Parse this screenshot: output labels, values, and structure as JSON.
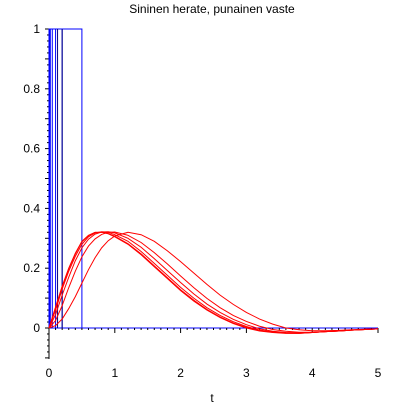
{
  "chart_data": {
    "type": "line",
    "title": "Sininen herate, punainen vaste",
    "xlabel": "t",
    "ylabel": "",
    "xlim": [
      -0.05,
      5
    ],
    "ylim": [
      -0.1,
      1
    ],
    "x_ticks": [
      0,
      1,
      2,
      3,
      4,
      5
    ],
    "x_tick_labels": [
      "0",
      "1",
      "2",
      "3",
      "4",
      "5"
    ],
    "y_ticks": [
      0,
      0.2,
      0.4,
      0.6,
      0.8,
      1
    ],
    "y_tick_labels": [
      "0",
      "0.2",
      "0.4",
      "0.6",
      "0.8",
      "1"
    ],
    "grid": false,
    "colors": {
      "excitation": "#0000ff",
      "response": "#ff0000",
      "axis": "#000000"
    },
    "excitation_pulses": [
      {
        "width": 0.01,
        "height": 1
      },
      {
        "width": 0.02,
        "height": 1
      },
      {
        "width": 0.05,
        "height": 1
      },
      {
        "width": 0.1,
        "height": 1
      },
      {
        "width": 0.2,
        "height": 1
      },
      {
        "width": 0.5,
        "height": 1
      }
    ],
    "series": [
      {
        "x": [
          0,
          0.1,
          0.2,
          0.3,
          0.4,
          0.5,
          0.6,
          0.7,
          0.8,
          0.9,
          1.0,
          1.2,
          1.4,
          1.6,
          1.8,
          2.0,
          2.2,
          2.4,
          2.6,
          2.8,
          3.0,
          3.2,
          3.4,
          3.6,
          3.8,
          4.0,
          4.2,
          4.4,
          4.6,
          4.8,
          5.0
        ],
        "y": [
          0,
          0.07,
          0.14,
          0.2,
          0.25,
          0.29,
          0.31,
          0.32,
          0.32,
          0.315,
          0.305,
          0.28,
          0.245,
          0.205,
          0.165,
          0.125,
          0.09,
          0.06,
          0.035,
          0.015,
          0.0,
          -0.01,
          -0.015,
          -0.018,
          -0.018,
          -0.015,
          -0.012,
          -0.01,
          -0.007,
          -0.005,
          -0.003
        ]
      },
      {
        "x": [
          0,
          0.1,
          0.2,
          0.3,
          0.4,
          0.5,
          0.6,
          0.7,
          0.8,
          0.9,
          1.0,
          1.2,
          1.4,
          1.6,
          1.8,
          2.0,
          2.2,
          2.4,
          2.6,
          2.8,
          3.0,
          3.2,
          3.4,
          3.6,
          3.8,
          4.0,
          4.2,
          4.4,
          4.6,
          4.8,
          5.0
        ],
        "y": [
          0,
          0.068,
          0.138,
          0.198,
          0.248,
          0.288,
          0.309,
          0.32,
          0.32,
          0.316,
          0.307,
          0.282,
          0.248,
          0.208,
          0.168,
          0.128,
          0.093,
          0.062,
          0.037,
          0.017,
          0.002,
          -0.009,
          -0.014,
          -0.017,
          -0.018,
          -0.015,
          -0.012,
          -0.01,
          -0.007,
          -0.005,
          -0.003
        ]
      },
      {
        "x": [
          0,
          0.1,
          0.2,
          0.3,
          0.4,
          0.5,
          0.6,
          0.7,
          0.8,
          0.9,
          1.0,
          1.2,
          1.4,
          1.6,
          1.8,
          2.0,
          2.2,
          2.4,
          2.6,
          2.8,
          3.0,
          3.2,
          3.4,
          3.6,
          3.8,
          4.0,
          4.2,
          4.4,
          4.6,
          4.8,
          5.0
        ],
        "y": [
          0,
          0.06,
          0.13,
          0.19,
          0.24,
          0.28,
          0.305,
          0.318,
          0.322,
          0.32,
          0.312,
          0.29,
          0.256,
          0.216,
          0.176,
          0.136,
          0.1,
          0.068,
          0.042,
          0.021,
          0.005,
          -0.007,
          -0.013,
          -0.016,
          -0.017,
          -0.015,
          -0.012,
          -0.01,
          -0.007,
          -0.005,
          -0.003
        ]
      },
      {
        "x": [
          0,
          0.1,
          0.2,
          0.3,
          0.4,
          0.5,
          0.6,
          0.7,
          0.8,
          0.9,
          1.0,
          1.2,
          1.4,
          1.6,
          1.8,
          2.0,
          2.2,
          2.4,
          2.6,
          2.8,
          3.0,
          3.2,
          3.4,
          3.6,
          3.8,
          4.0,
          4.2,
          4.4,
          4.6,
          4.8,
          5.0
        ],
        "y": [
          0,
          0.045,
          0.11,
          0.17,
          0.225,
          0.268,
          0.297,
          0.314,
          0.321,
          0.322,
          0.318,
          0.3,
          0.27,
          0.232,
          0.192,
          0.152,
          0.114,
          0.08,
          0.052,
          0.029,
          0.011,
          -0.003,
          -0.011,
          -0.015,
          -0.016,
          -0.015,
          -0.012,
          -0.01,
          -0.007,
          -0.005,
          -0.003
        ]
      },
      {
        "x": [
          0,
          0.1,
          0.2,
          0.3,
          0.4,
          0.5,
          0.6,
          0.7,
          0.8,
          0.9,
          1.0,
          1.2,
          1.4,
          1.6,
          1.8,
          2.0,
          2.2,
          2.4,
          2.6,
          2.8,
          3.0,
          3.2,
          3.4,
          3.6,
          3.8,
          4.0,
          4.2,
          4.4,
          4.6,
          4.8,
          5.0
        ],
        "y": [
          0,
          0.025,
          0.075,
          0.135,
          0.19,
          0.238,
          0.274,
          0.298,
          0.313,
          0.32,
          0.321,
          0.31,
          0.286,
          0.252,
          0.214,
          0.174,
          0.135,
          0.099,
          0.068,
          0.042,
          0.022,
          0.006,
          -0.005,
          -0.011,
          -0.014,
          -0.014,
          -0.012,
          -0.01,
          -0.007,
          -0.005,
          -0.003
        ]
      },
      {
        "x": [
          0,
          0.1,
          0.2,
          0.3,
          0.4,
          0.5,
          0.6,
          0.7,
          0.8,
          0.9,
          1.0,
          1.2,
          1.4,
          1.6,
          1.8,
          2.0,
          2.2,
          2.4,
          2.6,
          2.8,
          3.0,
          3.2,
          3.4,
          3.6,
          3.8,
          4.0,
          4.2,
          4.4,
          4.6,
          4.8,
          5.0
        ],
        "y": [
          0,
          0.008,
          0.03,
          0.065,
          0.105,
          0.15,
          0.195,
          0.235,
          0.268,
          0.292,
          0.308,
          0.32,
          0.312,
          0.29,
          0.258,
          0.222,
          0.184,
          0.146,
          0.11,
          0.079,
          0.052,
          0.03,
          0.013,
          0.0,
          -0.006,
          -0.009,
          -0.009,
          -0.008,
          -0.006,
          -0.004,
          -0.003
        ]
      }
    ]
  }
}
